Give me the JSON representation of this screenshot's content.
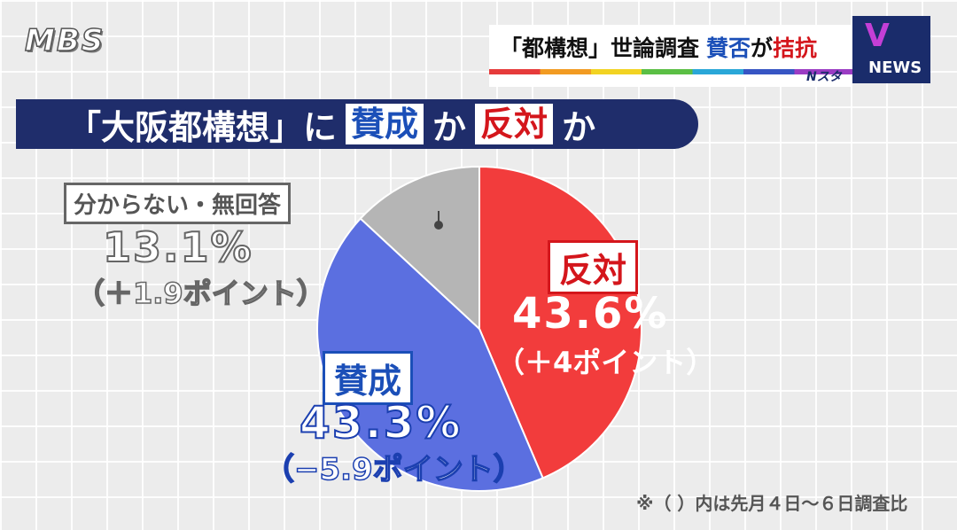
{
  "header": {
    "logo": "MBS",
    "ticker": {
      "part1": "「都構想」世論調査",
      "part2": "賛否",
      "part3": "が",
      "part4": "拮抗"
    },
    "program": "Nスタ",
    "news_label": "NEWS",
    "news_mark": "V"
  },
  "banner": {
    "pre": "「大阪都構想」に",
    "agree": "賛成",
    "mid": "か",
    "oppose": "反対",
    "post": "か"
  },
  "chart_data": {
    "type": "pie",
    "title": "「大阪都構想」に賛成か反対か",
    "slices": [
      {
        "label": "反対",
        "value": 43.6,
        "value_label": "43.6%",
        "change": "（＋4ポイント）",
        "color": "#f23c3c"
      },
      {
        "label": "賛成",
        "value": 43.3,
        "value_label": "43.3%",
        "change": "（−5.9ポイント）",
        "color": "#5b6fe0"
      },
      {
        "label": "分からない・無回答",
        "value": 13.1,
        "value_label": "13.1%",
        "change": "（＋1.9ポイント）",
        "color": "#b5b5b5"
      }
    ],
    "start": "12 o'clock",
    "direction": "clockwise"
  },
  "footnote": "※（ ）内は先月４日〜６日調査比"
}
